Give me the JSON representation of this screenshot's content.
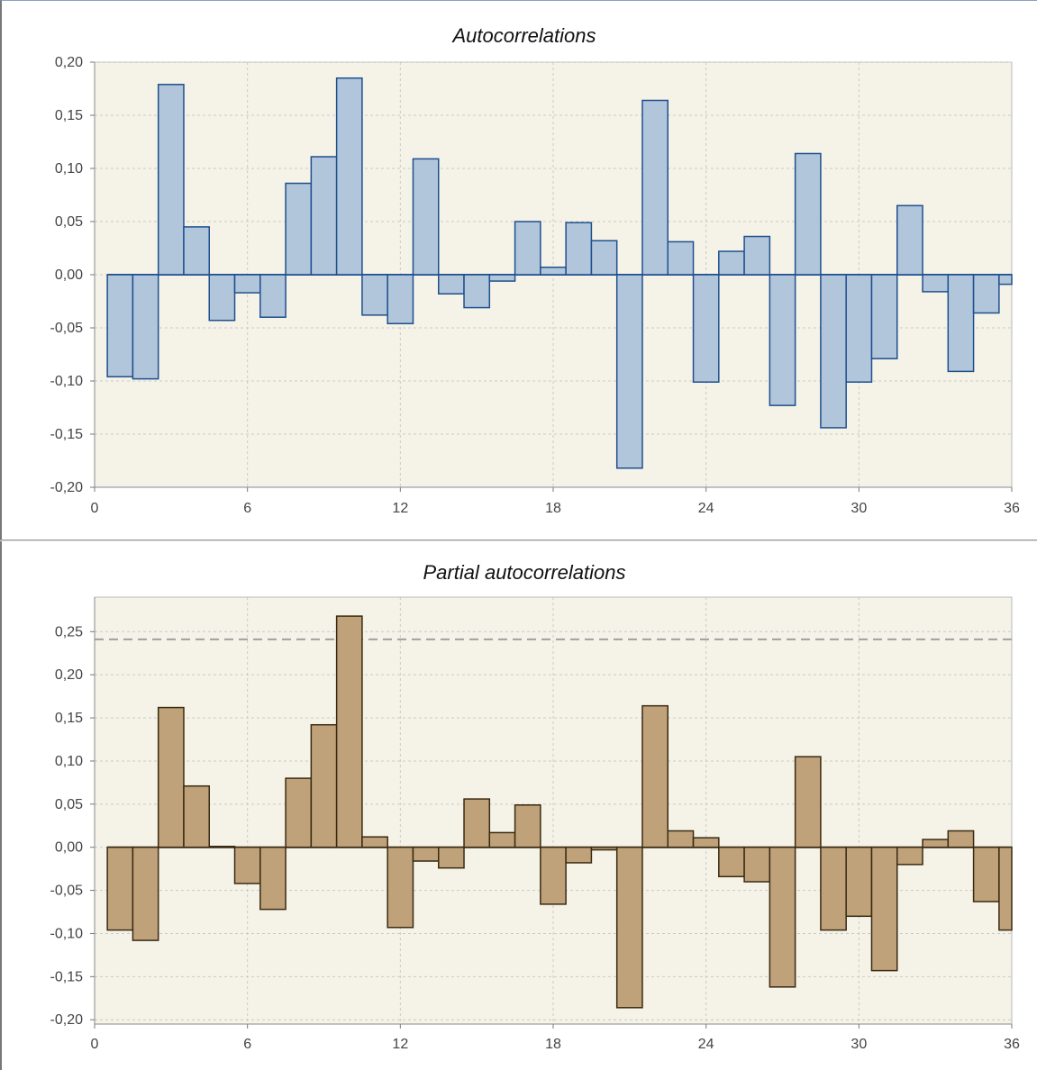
{
  "chart_data": [
    {
      "id": "acf",
      "type": "bar",
      "title": "Autocorrelations",
      "xlim": [
        0,
        36
      ],
      "ylim": [
        -0.2,
        0.2
      ],
      "x_ticks": [
        "0",
        "6",
        "12",
        "18",
        "24",
        "30",
        "36"
      ],
      "y_ticks": [
        "0,20",
        "0,15",
        "0,10",
        "0,05",
        "0,00",
        "-0,05",
        "-0,10",
        "-0,15",
        "-0,20"
      ],
      "grid": true,
      "colors": {
        "fill": "#b1c6db",
        "stroke": "#1f4f8e",
        "plot_bg": "#f5f3e7",
        "grid": "#c9c9c9"
      },
      "lags": [
        1,
        2,
        3,
        4,
        5,
        6,
        7,
        8,
        9,
        10,
        11,
        12,
        13,
        14,
        15,
        16,
        17,
        18,
        19,
        20,
        21,
        22,
        23,
        24,
        25,
        26,
        27,
        28,
        29,
        30,
        31,
        32,
        33,
        34,
        35,
        36
      ],
      "values": [
        -0.096,
        -0.098,
        0.179,
        0.045,
        -0.043,
        -0.017,
        -0.04,
        0.086,
        0.111,
        0.185,
        -0.038,
        -0.046,
        0.109,
        -0.018,
        -0.031,
        -0.006,
        0.05,
        0.007,
        0.049,
        0.032,
        -0.182,
        0.164,
        0.031,
        -0.101,
        0.022,
        0.036,
        -0.123,
        0.114,
        -0.144,
        -0.101,
        -0.079,
        0.065,
        -0.016,
        -0.091,
        -0.036,
        -0.009
      ]
    },
    {
      "id": "pacf",
      "type": "bar",
      "title": "Partial autocorrelations",
      "xlim": [
        0,
        36
      ],
      "ylim": [
        -0.205,
        0.29
      ],
      "x_ticks": [
        "0",
        "6",
        "12",
        "18",
        "24",
        "30",
        "36"
      ],
      "y_ticks": [
        "0,25",
        "0,20",
        "0,15",
        "0,10",
        "0,05",
        "0,00",
        "-0,05",
        "-0,10",
        "-0,15",
        "-0,20"
      ],
      "grid": true,
      "threshold": 0.241,
      "colors": {
        "fill": "#bfa27a",
        "stroke": "#3a2a12",
        "plot_bg": "#f5f3e7",
        "grid": "#c9c9c9",
        "threshold": "#a0a0a0"
      },
      "lags": [
        1,
        2,
        3,
        4,
        5,
        6,
        7,
        8,
        9,
        10,
        11,
        12,
        13,
        14,
        15,
        16,
        17,
        18,
        19,
        20,
        21,
        22,
        23,
        24,
        25,
        26,
        27,
        28,
        29,
        30,
        31,
        32,
        33,
        34,
        35,
        36
      ],
      "values": [
        -0.096,
        -0.108,
        0.162,
        0.071,
        0.001,
        -0.042,
        -0.072,
        0.08,
        0.142,
        0.268,
        0.012,
        -0.093,
        -0.016,
        -0.024,
        0.056,
        0.017,
        0.049,
        -0.066,
        -0.018,
        -0.003,
        -0.186,
        0.164,
        0.019,
        0.011,
        -0.034,
        -0.04,
        -0.162,
        0.105,
        -0.096,
        -0.08,
        -0.143,
        -0.02,
        0.009,
        0.019,
        -0.063,
        -0.096
      ]
    }
  ]
}
